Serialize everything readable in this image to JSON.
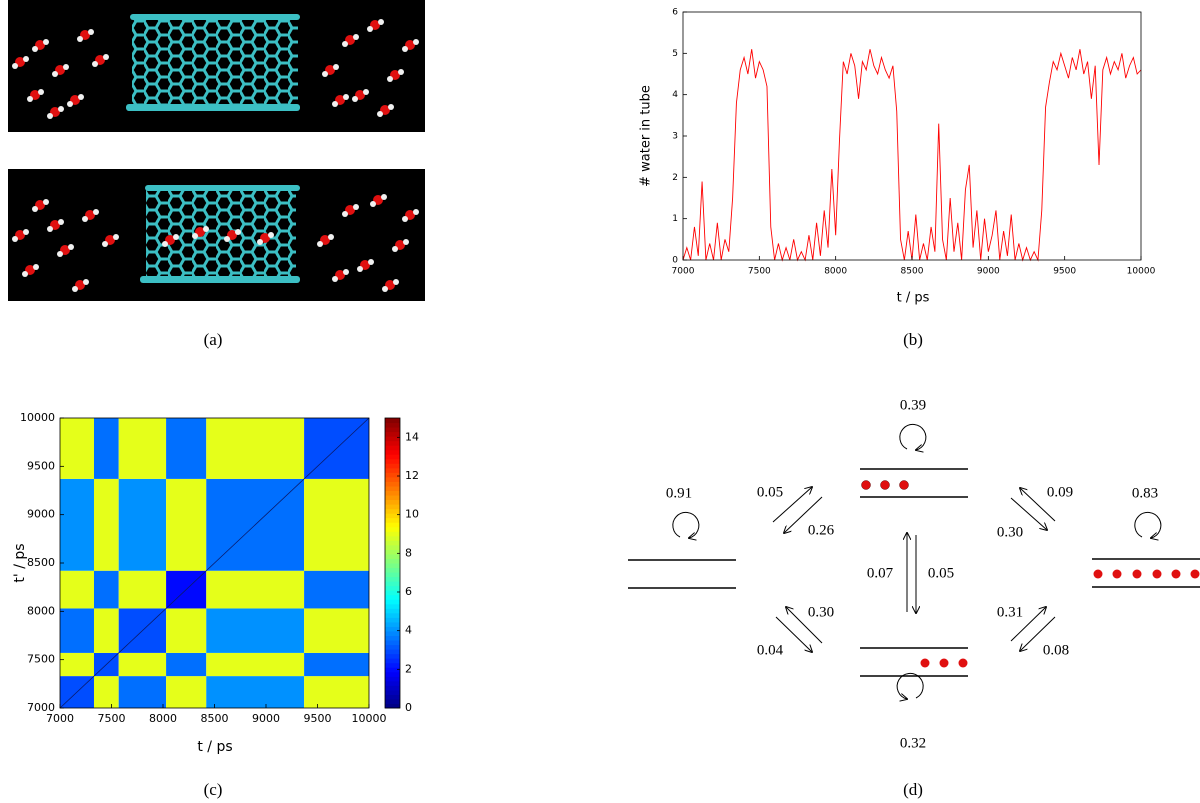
{
  "panel_labels": [
    "(a)",
    "(b)",
    "(c)",
    "(d)"
  ],
  "chart_data": [
    {
      "type": "line",
      "xlabel": "t / ps",
      "ylabel": "# water in tube",
      "color": "#ff0000",
      "grid": false,
      "xlim": [
        7000,
        10000
      ],
      "ylim": [
        0,
        6
      ],
      "xticks": [
        7000,
        7500,
        8000,
        8500,
        9000,
        9500,
        10000
      ],
      "yticks": [
        0,
        1,
        2,
        3,
        4,
        5,
        6
      ],
      "x": [
        7000,
        7025,
        7050,
        7075,
        7100,
        7125,
        7150,
        7175,
        7200,
        7225,
        7250,
        7275,
        7300,
        7325,
        7350,
        7375,
        7400,
        7425,
        7450,
        7475,
        7500,
        7525,
        7550,
        7575,
        7600,
        7625,
        7650,
        7675,
        7700,
        7725,
        7750,
        7775,
        7800,
        7825,
        7850,
        7875,
        7900,
        7925,
        7950,
        7975,
        8000,
        8025,
        8050,
        8075,
        8100,
        8125,
        8150,
        8175,
        8200,
        8225,
        8250,
        8275,
        8300,
        8325,
        8350,
        8375,
        8400,
        8425,
        8450,
        8475,
        8500,
        8525,
        8550,
        8575,
        8600,
        8625,
        8650,
        8675,
        8700,
        8725,
        8750,
        8775,
        8800,
        8825,
        8850,
        8875,
        8900,
        8925,
        8950,
        8975,
        9000,
        9025,
        9050,
        9075,
        9100,
        9125,
        9150,
        9175,
        9200,
        9225,
        9250,
        9275,
        9300,
        9325,
        9350,
        9375,
        9400,
        9425,
        9450,
        9475,
        9500,
        9525,
        9550,
        9575,
        9600,
        9625,
        9650,
        9675,
        9700,
        9725,
        9750,
        9775,
        9800,
        9825,
        9850,
        9875,
        9900,
        9925,
        9950,
        9975,
        10000
      ],
      "values": [
        0,
        0.3,
        0,
        0.8,
        0.1,
        1.9,
        0,
        0.4,
        0,
        0.9,
        0,
        0.5,
        0.2,
        1.5,
        3.8,
        4.6,
        4.9,
        4.5,
        5.1,
        4.4,
        4.8,
        4.6,
        4.2,
        0.8,
        0,
        0.4,
        0,
        0.3,
        0,
        0.5,
        0,
        0.2,
        0,
        0.6,
        0,
        0.9,
        0.1,
        1.2,
        0.3,
        2.2,
        0.6,
        2.9,
        4.8,
        4.5,
        5.0,
        4.7,
        3.9,
        4.8,
        4.6,
        5.1,
        4.7,
        4.5,
        4.9,
        4.6,
        4.4,
        4.7,
        3.6,
        0.5,
        0,
        0.7,
        0,
        1.1,
        0,
        0.4,
        0,
        0.8,
        0.2,
        3.3,
        0.5,
        0,
        1.5,
        0.2,
        0.9,
        0,
        1.7,
        2.3,
        0.3,
        1.2,
        0,
        1.0,
        0.2,
        0.6,
        1.2,
        0,
        0.7,
        0.1,
        1.1,
        0,
        0.4,
        0,
        0.3,
        0,
        0.2,
        0,
        1.2,
        3.7,
        4.3,
        4.8,
        4.6,
        5.0,
        4.7,
        4.4,
        4.9,
        4.6,
        5.1,
        4.5,
        4.8,
        3.9,
        4.7,
        2.3,
        4.6,
        4.9,
        4.5,
        4.8,
        4.6,
        5.0,
        4.4,
        4.7,
        4.9,
        4.5,
        4.6
      ]
    },
    {
      "type": "heatmap",
      "xlabel": "t / ps",
      "ylabel": "t' / ps",
      "colormap": "jet",
      "xlim": [
        7000,
        10000
      ],
      "ylim": [
        7000,
        10000
      ],
      "xticks": [
        7000,
        7500,
        8000,
        8500,
        9000,
        9500,
        10000
      ],
      "yticks": [
        7000,
        7500,
        8000,
        8500,
        9000,
        9500,
        10000
      ],
      "x_edges": [
        7000,
        7330,
        7570,
        8030,
        8420,
        9370,
        10000
      ],
      "y_edges": [
        7000,
        7330,
        7570,
        8030,
        8420,
        9370,
        10000
      ],
      "values": [
        [
          3,
          9,
          3.5,
          9,
          4,
          9
        ],
        [
          9,
          3,
          9,
          3.5,
          9,
          3.5
        ],
        [
          3.5,
          9,
          3,
          9,
          4,
          9
        ],
        [
          9,
          3.5,
          9,
          2,
          9,
          3.5
        ],
        [
          4,
          9,
          4,
          9,
          3.5,
          9
        ],
        [
          9,
          3.5,
          9,
          3.5,
          9,
          3
        ]
      ],
      "clim": [
        0,
        15
      ],
      "cticks": [
        0,
        2,
        4,
        6,
        8,
        10,
        12,
        14
      ]
    }
  ],
  "diagram": {
    "self_loops": [
      "0.91",
      "0.39",
      "0.83",
      "0.32"
    ],
    "transitions": [
      "0.05",
      "0.26",
      "0.09",
      "0.30",
      "0.07",
      "0.05",
      "0.30",
      "0.04",
      "0.31",
      "0.08"
    ]
  }
}
